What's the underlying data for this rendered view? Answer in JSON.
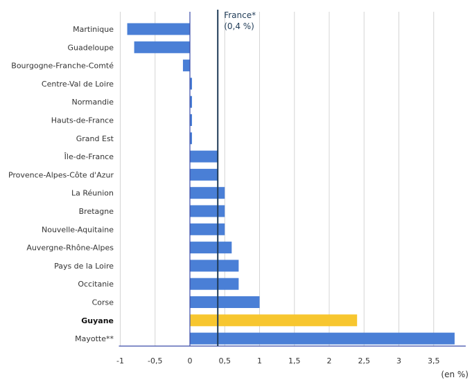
{
  "chart_data": {
    "type": "bar",
    "orientation": "horizontal",
    "categories": [
      "Martinique",
      "Guadeloupe",
      "Bourgogne-Franche-Comté",
      "Centre-Val de Loire",
      "Normandie",
      "Hauts-de-France",
      "Grand Est",
      "Île-de-France",
      "Provence-Alpes-Côte d'Azur",
      "La Réunion",
      "Bretagne",
      "Nouvelle-Aquitaine",
      "Auvergne-Rhône-Alpes",
      "Pays de la Loire",
      "Occitanie",
      "Corse",
      "Guyane",
      "Mayotte**"
    ],
    "values": [
      -0.9,
      -0.8,
      -0.1,
      0.03,
      0.03,
      0.03,
      0.03,
      0.4,
      0.4,
      0.5,
      0.5,
      0.5,
      0.6,
      0.7,
      0.7,
      1.0,
      2.4,
      3.8
    ],
    "highlight": "Guyane",
    "bar_color": "#4a7fd6",
    "highlight_color": "#f7c62f",
    "reference_line": {
      "value": 0.4,
      "label_line1": "France*",
      "label_line2": "(0,4 %)",
      "color": "#1f3b57"
    },
    "xlim": [
      -1,
      3.9
    ],
    "xticks": [
      -1,
      -0.5,
      0,
      0.5,
      1,
      1.5,
      2,
      2.5,
      3,
      3.5
    ],
    "xtick_labels": [
      "-1",
      "-0,5",
      "0",
      "0,5",
      "1",
      "1,5",
      "2",
      "2,5",
      "3",
      "3,5"
    ],
    "unit_label": "(en %)",
    "grid": "vertical",
    "title": "",
    "xlabel": "",
    "ylabel": ""
  }
}
